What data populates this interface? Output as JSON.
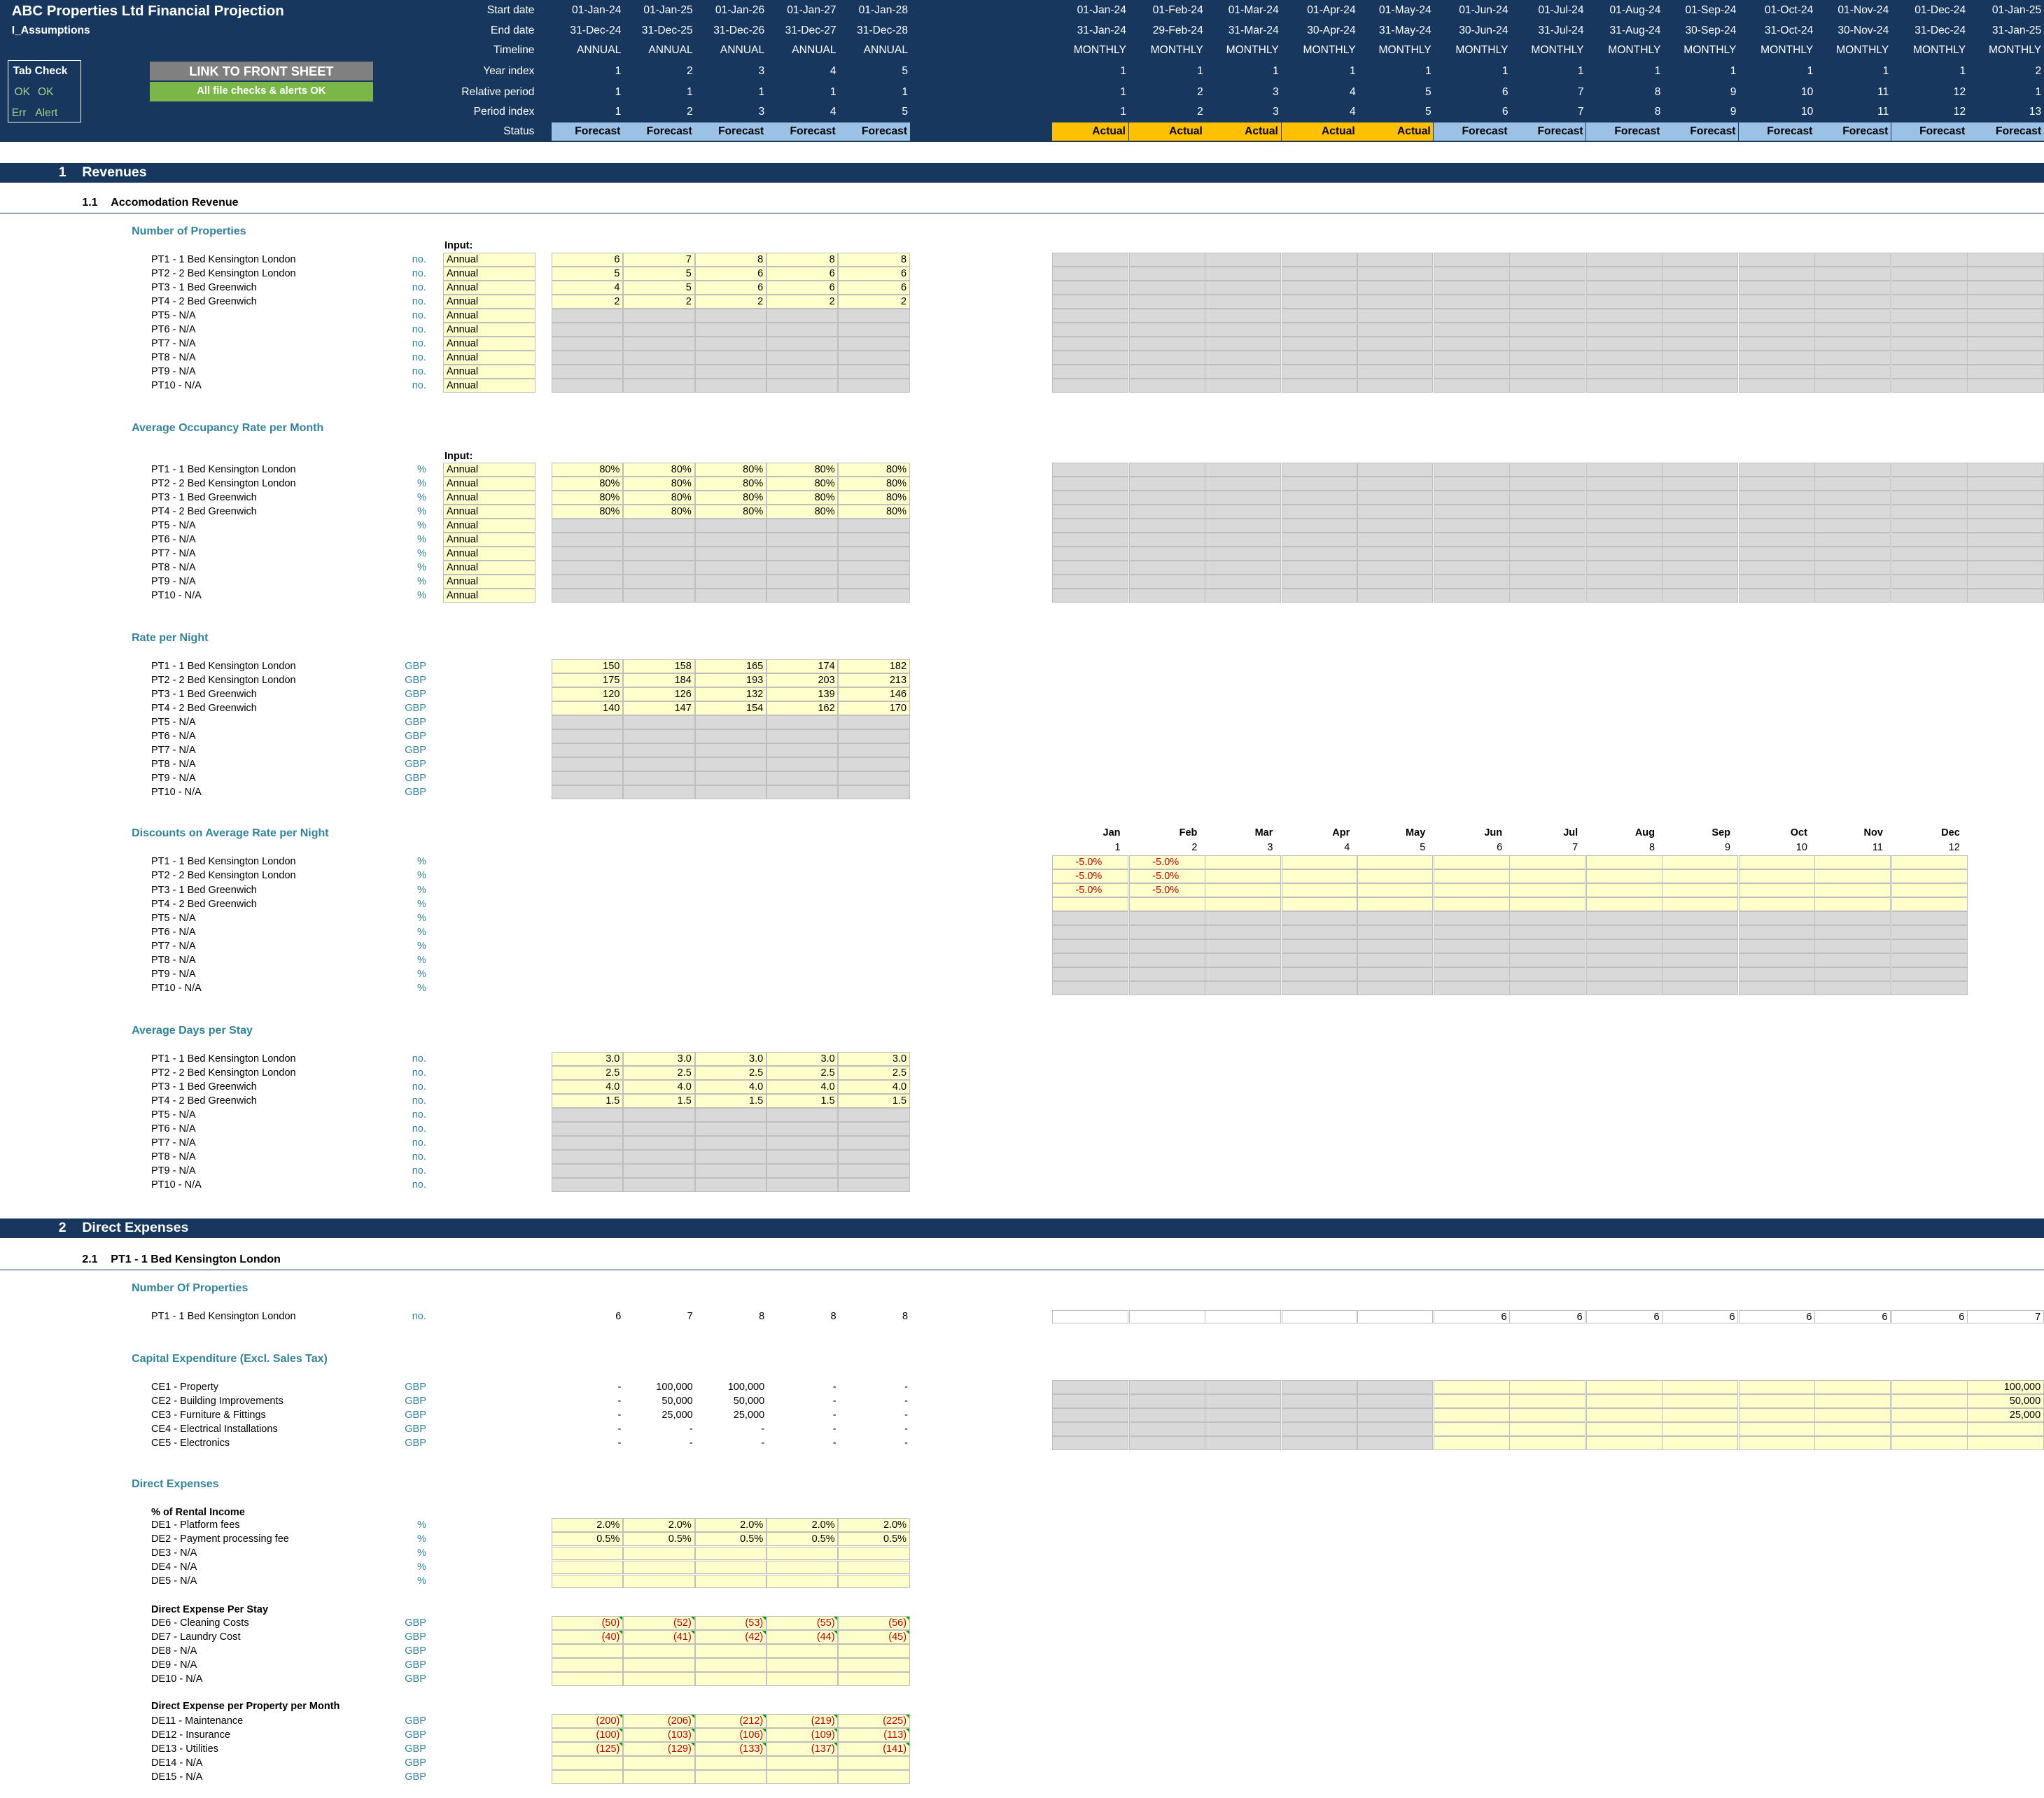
{
  "header": {
    "title": "ABC Properties Ltd Financial Projection",
    "sheet": "I_Assumptions",
    "tab_check": {
      "title": "Tab Check",
      "row1": [
        "OK",
        "OK"
      ],
      "row2": [
        "Err",
        "Alert"
      ]
    },
    "link_button": "LINK TO FRONT SHEET",
    "checks_ok": "All file checks & alerts OK",
    "row_labels": [
      "Start date",
      "End date",
      "Timeline",
      "Year index",
      "Relative period",
      "Period index",
      "Status"
    ],
    "annual": {
      "start": [
        "01-Jan-24",
        "01-Jan-25",
        "01-Jan-26",
        "01-Jan-27",
        "01-Jan-28"
      ],
      "end": [
        "31-Dec-24",
        "31-Dec-25",
        "31-Dec-26",
        "31-Dec-27",
        "31-Dec-28"
      ],
      "timeline": [
        "ANNUAL",
        "ANNUAL",
        "ANNUAL",
        "ANNUAL",
        "ANNUAL"
      ],
      "year_index": [
        "1",
        "2",
        "3",
        "4",
        "5"
      ],
      "relative": [
        "1",
        "1",
        "1",
        "1",
        "1"
      ],
      "period": [
        "1",
        "2",
        "3",
        "4",
        "5"
      ],
      "status": [
        "Forecast",
        "Forecast",
        "Forecast",
        "Forecast",
        "Forecast"
      ]
    },
    "monthly": {
      "start": [
        "01-Jan-24",
        "01-Feb-24",
        "01-Mar-24",
        "01-Apr-24",
        "01-May-24",
        "01-Jun-24",
        "01-Jul-24",
        "01-Aug-24",
        "01-Sep-24",
        "01-Oct-24",
        "01-Nov-24",
        "01-Dec-24",
        "01-Jan-25"
      ],
      "end": [
        "31-Jan-24",
        "29-Feb-24",
        "31-Mar-24",
        "30-Apr-24",
        "31-May-24",
        "30-Jun-24",
        "31-Jul-24",
        "31-Aug-24",
        "30-Sep-24",
        "31-Oct-24",
        "30-Nov-24",
        "31-Dec-24",
        "31-Jan-25"
      ],
      "timeline": [
        "MONTHLY",
        "MONTHLY",
        "MONTHLY",
        "MONTHLY",
        "MONTHLY",
        "MONTHLY",
        "MONTHLY",
        "MONTHLY",
        "MONTHLY",
        "MONTHLY",
        "MONTHLY",
        "MONTHLY",
        "MONTHLY"
      ],
      "year_index": [
        "1",
        "1",
        "1",
        "1",
        "1",
        "1",
        "1",
        "1",
        "1",
        "1",
        "1",
        "1",
        "2"
      ],
      "relative": [
        "1",
        "2",
        "3",
        "4",
        "5",
        "6",
        "7",
        "8",
        "9",
        "10",
        "11",
        "12",
        "1"
      ],
      "period": [
        "1",
        "2",
        "3",
        "4",
        "5",
        "6",
        "7",
        "8",
        "9",
        "10",
        "11",
        "12",
        "13"
      ],
      "status": [
        "Actual",
        "Actual",
        "Actual",
        "Actual",
        "Actual",
        "Forecast",
        "Forecast",
        "Forecast",
        "Forecast",
        "Forecast",
        "Forecast",
        "Forecast",
        "Forecast"
      ]
    }
  },
  "labels": {
    "pt": [
      "PT1 - 1 Bed Kensington London",
      "PT2 - 2 Bed Kensington London",
      "PT3 - 1 Bed Greenwich",
      "PT4 - 2 Bed Greenwich",
      "PT5 - N/A",
      "PT6 - N/A",
      "PT7 - N/A",
      "PT8 - N/A",
      "PT9 - N/A",
      "PT10 - N/A"
    ],
    "input_label": "Input:",
    "annual_word": "Annual",
    "months": [
      "Jan",
      "Feb",
      "Mar",
      "Apr",
      "May",
      "Jun",
      "Jul",
      "Aug",
      "Sep",
      "Oct",
      "Nov",
      "Dec"
    ],
    "month_nums": [
      "1",
      "2",
      "3",
      "4",
      "5",
      "6",
      "7",
      "8",
      "9",
      "10",
      "11",
      "12"
    ]
  },
  "revenues": {
    "section": {
      "num": "1",
      "title": "Revenues"
    },
    "sub": {
      "num": "1.1",
      "title": "Accomodation Revenue"
    },
    "properties": {
      "title": "Number of Properties",
      "unit": "no.",
      "values": [
        [
          "6",
          "7",
          "8",
          "8",
          "8"
        ],
        [
          "5",
          "5",
          "6",
          "6",
          "6"
        ],
        [
          "4",
          "5",
          "6",
          "6",
          "6"
        ],
        [
          "2",
          "2",
          "2",
          "2",
          "2"
        ]
      ]
    },
    "occupancy": {
      "title": "Average Occupancy Rate per Month",
      "unit": "%",
      "values": [
        [
          "80%",
          "80%",
          "80%",
          "80%",
          "80%"
        ],
        [
          "80%",
          "80%",
          "80%",
          "80%",
          "80%"
        ],
        [
          "80%",
          "80%",
          "80%",
          "80%",
          "80%"
        ],
        [
          "80%",
          "80%",
          "80%",
          "80%",
          "80%"
        ]
      ]
    },
    "rate": {
      "title": "Rate per Night",
      "unit": "GBP",
      "values": [
        [
          "150",
          "158",
          "165",
          "174",
          "182"
        ],
        [
          "175",
          "184",
          "193",
          "203",
          "213"
        ],
        [
          "120",
          "126",
          "132",
          "139",
          "146"
        ],
        [
          "140",
          "147",
          "154",
          "162",
          "170"
        ]
      ]
    },
    "discounts": {
      "title": "Discounts on Average Rate per Night",
      "unit": "%",
      "values": [
        [
          "-5.0%",
          "-5.0%"
        ],
        [
          "-5.0%",
          "-5.0%"
        ],
        [
          "-5.0%",
          "-5.0%"
        ]
      ]
    },
    "days": {
      "title": "Average Days per Stay",
      "unit": "no.",
      "values": [
        [
          "3.0",
          "3.0",
          "3.0",
          "3.0",
          "3.0"
        ],
        [
          "2.5",
          "2.5",
          "2.5",
          "2.5",
          "2.5"
        ],
        [
          "4.0",
          "4.0",
          "4.0",
          "4.0",
          "4.0"
        ],
        [
          "1.5",
          "1.5",
          "1.5",
          "1.5",
          "1.5"
        ]
      ]
    }
  },
  "direct": {
    "section": {
      "num": "2",
      "title": "Direct Expenses"
    },
    "sub": {
      "num": "2.1",
      "title": "PT1 - 1 Bed Kensington London"
    },
    "nprop": {
      "title": "Number Of Properties",
      "label": "PT1 - 1 Bed Kensington London",
      "unit": "no.",
      "annual": [
        "6",
        "7",
        "8",
        "8",
        "8"
      ],
      "monthly": [
        "",
        "",
        "",
        "",
        "",
        "6",
        "6",
        "6",
        "6",
        "6",
        "6",
        "6",
        "7"
      ]
    },
    "capex": {
      "title": "Capital Expenditure (Excl. Sales Tax)",
      "unit": "GBP",
      "rows": [
        {
          "label": "CE1 - Property",
          "annual": [
            "-",
            "100,000",
            "100,000",
            "-",
            "-"
          ],
          "jan25": "100,000"
        },
        {
          "label": "CE2 - Building Improvements",
          "annual": [
            "-",
            "50,000",
            "50,000",
            "-",
            "-"
          ],
          "jan25": "50,000"
        },
        {
          "label": "CE3 - Furniture & Fittings",
          "annual": [
            "-",
            "25,000",
            "25,000",
            "-",
            "-"
          ],
          "jan25": "25,000"
        },
        {
          "label": "CE4 - Electrical Installations",
          "annual": [
            "-",
            "-",
            "-",
            "-",
            "-"
          ],
          "jan25": ""
        },
        {
          "label": "CE5 - Electronics",
          "annual": [
            "-",
            "-",
            "-",
            "-",
            "-"
          ],
          "jan25": ""
        }
      ]
    },
    "expenses": {
      "title": "Direct Expenses",
      "pct": {
        "title": "% of Rental Income",
        "unit": "%",
        "rows": [
          {
            "label": "DE1 - Platform fees",
            "values": [
              "2.0%",
              "2.0%",
              "2.0%",
              "2.0%",
              "2.0%"
            ]
          },
          {
            "label": "DE2 - Payment processing fee",
            "values": [
              "0.5%",
              "0.5%",
              "0.5%",
              "0.5%",
              "0.5%"
            ]
          },
          {
            "label": "DE3 - N/A",
            "values": [
              "",
              "",
              "",
              "",
              ""
            ]
          },
          {
            "label": "DE4 - N/A",
            "values": [
              "",
              "",
              "",
              "",
              ""
            ]
          },
          {
            "label": "DE5 - N/A",
            "values": [
              "",
              "",
              "",
              "",
              ""
            ]
          }
        ]
      },
      "stay": {
        "title": "Direct Expense Per Stay",
        "unit": "GBP",
        "rows": [
          {
            "label": "DE6 - Cleaning Costs",
            "values": [
              "(50)",
              "(52)",
              "(53)",
              "(55)",
              "(56)"
            ]
          },
          {
            "label": "DE7 - Laundry Cost",
            "values": [
              "(40)",
              "(41)",
              "(42)",
              "(44)",
              "(45)"
            ]
          },
          {
            "label": "DE8 - N/A",
            "values": [
              "",
              "",
              "",
              "",
              ""
            ]
          },
          {
            "label": "DE9 - N/A",
            "values": [
              "",
              "",
              "",
              "",
              ""
            ]
          },
          {
            "label": "DE10 - N/A",
            "values": [
              "",
              "",
              "",
              "",
              ""
            ]
          }
        ]
      },
      "month": {
        "title": "Direct Expense per Property per Month",
        "unit": "GBP",
        "rows": [
          {
            "label": "DE11 - Maintenance",
            "values": [
              "(200)",
              "(206)",
              "(212)",
              "(219)",
              "(225)"
            ]
          },
          {
            "label": "DE12 - Insurance",
            "values": [
              "(100)",
              "(103)",
              "(106)",
              "(109)",
              "(113)"
            ]
          },
          {
            "label": "DE13 - Utilities",
            "values": [
              "(125)",
              "(129)",
              "(133)",
              "(137)",
              "(141)"
            ]
          },
          {
            "label": "DE14 - N/A",
            "values": [
              "",
              "",
              "",
              "",
              ""
            ]
          },
          {
            "label": "DE15 - N/A",
            "values": [
              "",
              "",
              "",
              "",
              ""
            ]
          }
        ]
      }
    }
  },
  "colors": {
    "navy": "#17375e",
    "teal": "#31849b",
    "input_yellow": "#ffffcc",
    "grey": "#d9d9d9",
    "forecast": "#9bc2e6",
    "actual": "#ffc000",
    "green": "#7ab648",
    "button_grey": "#808080",
    "negative": "#c00000"
  }
}
